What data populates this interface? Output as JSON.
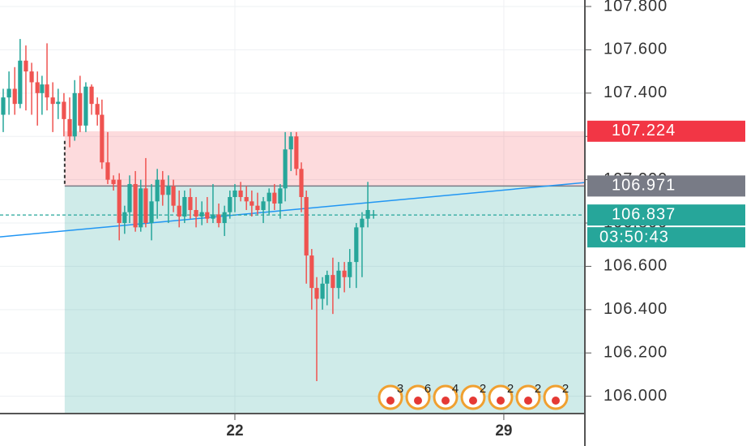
{
  "chart_data": {
    "type": "candlestick",
    "xlim": [
      15.886,
      31.11
    ],
    "xticks": [
      22,
      29
    ],
    "ylim": [
      105.92,
      107.83
    ],
    "yticks": [
      {
        "value": 107.8,
        "label": "107.800"
      },
      {
        "value": 107.6,
        "label": "107.600"
      },
      {
        "value": 107.4,
        "label": "107.400"
      },
      {
        "value": 107.2,
        "label": "107.200"
      },
      {
        "value": 107.0,
        "label": "107.000"
      },
      {
        "value": 106.8,
        "label": "106.800"
      },
      {
        "value": 106.6,
        "label": "106.600"
      },
      {
        "value": 106.4,
        "label": "106.400"
      },
      {
        "value": 106.2,
        "label": "106.200"
      },
      {
        "value": 106.0,
        "label": "106.000"
      }
    ],
    "grid": true,
    "up_color": "#26a69a",
    "down_color": "#ef5350",
    "series": {
      "x": [
        15.97,
        16.12,
        16.27,
        16.41,
        16.56,
        16.71,
        16.86,
        16.98,
        17.11,
        17.26,
        17.4,
        17.55,
        17.7,
        17.83,
        17.97,
        18.12,
        18.27,
        18.42,
        18.54,
        18.69,
        18.84,
        18.99,
        19.13,
        19.26,
        19.41,
        19.55,
        19.68,
        19.83,
        19.98,
        20.12,
        20.27,
        20.4,
        20.55,
        20.69,
        20.84,
        20.99,
        21.14,
        21.28,
        21.43,
        21.58,
        21.73,
        21.87,
        22.0,
        22.15,
        22.3,
        22.44,
        22.59,
        22.74,
        22.89,
        23.03,
        23.18,
        23.31,
        23.46,
        23.6,
        23.73,
        23.86,
        24.0,
        24.13,
        24.28,
        24.4,
        24.55,
        24.7,
        24.85,
        24.99,
        25.16,
        25.31,
        25.46,
        25.61
      ],
      "open": [
        107.3,
        107.38,
        107.42,
        107.35,
        107.55,
        107.5,
        107.45,
        107.4,
        107.44,
        107.38,
        107.35,
        107.36,
        107.28,
        107.2,
        107.4,
        107.25,
        107.43,
        107.35,
        107.3,
        107.08,
        107.0,
        107.0,
        106.8,
        106.85,
        106.98,
        106.78,
        106.96,
        106.8,
        106.9,
        107.0,
        106.93,
        106.97,
        106.88,
        106.83,
        106.92,
        106.86,
        106.83,
        106.85,
        106.82,
        106.84,
        106.8,
        106.85,
        106.92,
        106.95,
        106.92,
        106.9,
        106.88,
        106.86,
        106.9,
        106.94,
        106.89,
        106.96,
        107.14,
        107.2,
        107.05,
        106.92,
        106.65,
        106.5,
        106.45,
        106.52,
        106.56,
        106.5,
        106.58,
        106.55,
        106.62,
        106.78,
        106.82,
        106.84
      ],
      "high": [
        107.42,
        107.5,
        107.52,
        107.65,
        107.62,
        107.54,
        107.5,
        107.48,
        107.63,
        107.45,
        107.42,
        107.4,
        107.38,
        107.46,
        107.48,
        107.45,
        107.44,
        107.38,
        107.37,
        107.22,
        107.02,
        107.03,
        106.88,
        107.02,
        107.04,
        107.0,
        107.1,
        106.98,
        107.05,
        107.04,
        107.02,
        107.0,
        106.95,
        106.95,
        106.96,
        106.92,
        106.9,
        106.92,
        106.98,
        106.89,
        106.88,
        106.95,
        106.98,
        106.99,
        106.97,
        106.95,
        106.94,
        106.92,
        106.96,
        106.98,
        106.98,
        107.22,
        107.22,
        107.22,
        107.08,
        106.95,
        106.68,
        106.55,
        106.55,
        106.58,
        106.64,
        106.62,
        106.62,
        106.68,
        106.8,
        106.85,
        106.99,
        106.86
      ],
      "low": [
        107.22,
        107.3,
        107.3,
        107.33,
        107.32,
        107.3,
        107.25,
        107.3,
        107.32,
        107.22,
        107.28,
        107.2,
        107.15,
        107.18,
        107.22,
        107.22,
        107.3,
        107.25,
        107.05,
        106.98,
        106.95,
        106.72,
        106.75,
        106.8,
        106.76,
        106.76,
        106.78,
        106.72,
        106.82,
        106.88,
        106.8,
        106.85,
        106.78,
        106.8,
        106.82,
        106.78,
        106.79,
        106.8,
        106.8,
        106.78,
        106.74,
        106.82,
        106.85,
        106.9,
        106.86,
        106.83,
        106.84,
        106.8,
        106.84,
        106.86,
        106.82,
        106.9,
        107.04,
        107.02,
        106.85,
        106.52,
        106.4,
        106.07,
        106.4,
        106.42,
        106.38,
        106.45,
        106.48,
        106.5,
        106.5,
        106.55,
        106.78,
        106.82
      ],
      "close": [
        107.38,
        107.42,
        107.35,
        107.55,
        107.5,
        107.45,
        107.4,
        107.44,
        107.38,
        107.35,
        107.36,
        107.28,
        107.2,
        107.4,
        107.25,
        107.43,
        107.35,
        107.3,
        107.08,
        107.0,
        106.98,
        106.8,
        106.85,
        106.98,
        106.78,
        106.96,
        106.8,
        106.9,
        107.0,
        106.93,
        106.97,
        106.88,
        106.83,
        106.92,
        106.86,
        106.83,
        106.85,
        106.82,
        106.84,
        106.8,
        106.85,
        106.92,
        106.95,
        106.92,
        106.9,
        106.88,
        106.86,
        106.9,
        106.94,
        106.89,
        106.96,
        107.14,
        107.2,
        107.05,
        106.92,
        106.65,
        106.5,
        106.45,
        106.52,
        106.56,
        106.5,
        106.58,
        106.55,
        106.62,
        106.78,
        106.82,
        106.86,
        106.84
      ]
    },
    "trendline": {
      "x": [
        15.886,
        31.11
      ],
      "values": [
        106.736,
        106.987
      ],
      "color": "#2196f3"
    },
    "position": {
      "start": 17.57,
      "stop": 107.224,
      "entry": 106.971,
      "stop_color": "#f23645",
      "entry_color": "#787b86"
    },
    "last_price": 106.837,
    "last_price_color": "#26a69a",
    "countdown": "03:50:43",
    "events": [
      "3",
      "6",
      "4",
      "2",
      "2",
      "2",
      "2"
    ]
  }
}
